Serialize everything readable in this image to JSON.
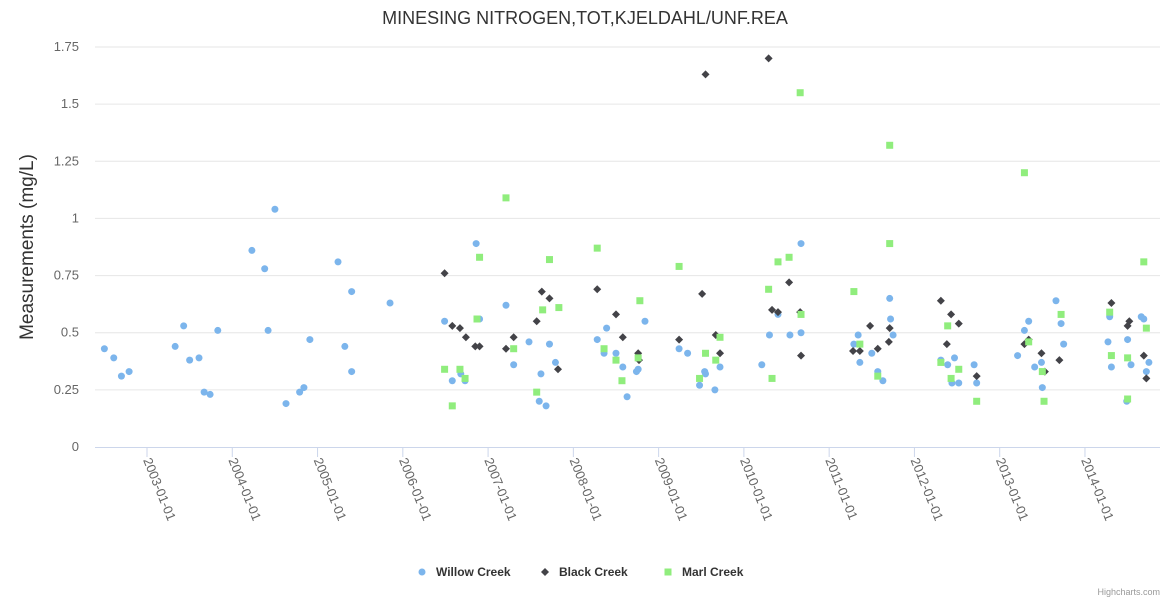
{
  "chart_data": {
    "type": "scatter",
    "title": "MINESING NITROGEN,TOT,KJELDAHL/UNF.REA",
    "xlabel": "",
    "ylabel": "Measurements (mg/L)",
    "x_units": "decimal year",
    "xlim": [
      2002.39,
      2014.88
    ],
    "ylim": [
      0,
      1.75
    ],
    "grid": true,
    "legend_position": "bottom-center",
    "y_ticks": [
      0,
      0.25,
      0.5,
      0.75,
      1,
      1.25,
      1.5,
      1.75
    ],
    "y_tick_labels": [
      "0",
      "0.25",
      "0.5",
      "0.75",
      "1",
      "1.25",
      "1.5",
      "1.75"
    ],
    "x_ticks": [
      2003,
      2004,
      2005,
      2006,
      2007,
      2008,
      2009,
      2010,
      2011,
      2012,
      2013,
      2014
    ],
    "x_tick_labels": [
      "2003-01-01",
      "2004-01-01",
      "2005-01-01",
      "2006-01-01",
      "2007-01-01",
      "2008-01-01",
      "2009-01-01",
      "2010-01-01",
      "2011-01-01",
      "2012-01-01",
      "2013-01-01",
      "2014-01-01"
    ],
    "credits": "Highcharts.com",
    "series": [
      {
        "name": "Willow Creek",
        "color": "#7cb5ec",
        "marker": "circle",
        "points": [
          [
            2002.5,
            0.43
          ],
          [
            2002.61,
            0.39
          ],
          [
            2002.7,
            0.31
          ],
          [
            2002.79,
            0.33
          ],
          [
            2003.33,
            0.44
          ],
          [
            2003.43,
            0.53
          ],
          [
            2003.5,
            0.38
          ],
          [
            2003.61,
            0.39
          ],
          [
            2003.67,
            0.24
          ],
          [
            2003.74,
            0.23
          ],
          [
            2003.83,
            0.51
          ],
          [
            2004.23,
            0.86
          ],
          [
            2004.38,
            0.78
          ],
          [
            2004.42,
            0.51
          ],
          [
            2004.5,
            1.04
          ],
          [
            2004.63,
            0.19
          ],
          [
            2004.79,
            0.24
          ],
          [
            2004.84,
            0.26
          ],
          [
            2004.91,
            0.47
          ],
          [
            2005.24,
            0.81
          ],
          [
            2005.32,
            0.44
          ],
          [
            2005.4,
            0.33
          ],
          [
            2005.4,
            0.68
          ],
          [
            2005.85,
            0.63
          ],
          [
            2006.49,
            0.55
          ],
          [
            2006.58,
            0.29
          ],
          [
            2006.68,
            0.32
          ],
          [
            2006.73,
            0.29
          ],
          [
            2006.86,
            0.89
          ],
          [
            2006.9,
            0.56
          ],
          [
            2007.21,
            0.62
          ],
          [
            2007.3,
            0.36
          ],
          [
            2007.48,
            0.46
          ],
          [
            2007.6,
            0.2
          ],
          [
            2007.62,
            0.32
          ],
          [
            2007.68,
            0.18
          ],
          [
            2007.72,
            0.45
          ],
          [
            2007.79,
            0.37
          ],
          [
            2008.28,
            0.47
          ],
          [
            2008.36,
            0.41
          ],
          [
            2008.39,
            0.52
          ],
          [
            2008.5,
            0.41
          ],
          [
            2008.58,
            0.35
          ],
          [
            2008.63,
            0.22
          ],
          [
            2008.74,
            0.33
          ],
          [
            2008.76,
            0.34
          ],
          [
            2008.84,
            0.55
          ],
          [
            2009.24,
            0.43
          ],
          [
            2009.34,
            0.41
          ],
          [
            2009.48,
            0.27
          ],
          [
            2009.54,
            0.33
          ],
          [
            2009.55,
            0.32
          ],
          [
            2009.66,
            0.25
          ],
          [
            2009.72,
            0.35
          ],
          [
            2010.21,
            0.36
          ],
          [
            2010.3,
            0.49
          ],
          [
            2010.4,
            0.58
          ],
          [
            2010.54,
            0.49
          ],
          [
            2010.67,
            0.5
          ],
          [
            2010.67,
            0.89
          ],
          [
            2011.29,
            0.45
          ],
          [
            2011.34,
            0.49
          ],
          [
            2011.36,
            0.37
          ],
          [
            2011.5,
            0.41
          ],
          [
            2011.57,
            0.33
          ],
          [
            2011.63,
            0.29
          ],
          [
            2011.71,
            0.65
          ],
          [
            2011.72,
            0.56
          ],
          [
            2011.75,
            0.49
          ],
          [
            2012.31,
            0.38
          ],
          [
            2012.39,
            0.36
          ],
          [
            2012.44,
            0.28
          ],
          [
            2012.47,
            0.39
          ],
          [
            2012.52,
            0.28
          ],
          [
            2012.7,
            0.36
          ],
          [
            2012.73,
            0.28
          ],
          [
            2013.21,
            0.4
          ],
          [
            2013.29,
            0.51
          ],
          [
            2013.34,
            0.55
          ],
          [
            2013.41,
            0.35
          ],
          [
            2013.49,
            0.37
          ],
          [
            2013.5,
            0.26
          ],
          [
            2013.66,
            0.64
          ],
          [
            2013.72,
            0.54
          ],
          [
            2013.75,
            0.45
          ],
          [
            2014.27,
            0.46
          ],
          [
            2014.29,
            0.57
          ],
          [
            2014.31,
            0.35
          ],
          [
            2014.49,
            0.2
          ],
          [
            2014.5,
            0.47
          ],
          [
            2014.54,
            0.36
          ],
          [
            2014.66,
            0.57
          ],
          [
            2014.69,
            0.56
          ],
          [
            2014.72,
            0.33
          ],
          [
            2014.75,
            0.37
          ]
        ]
      },
      {
        "name": "Black Creek",
        "color": "#434348",
        "marker": "diamond",
        "points": [
          [
            2006.49,
            0.76
          ],
          [
            2006.58,
            0.53
          ],
          [
            2006.67,
            0.52
          ],
          [
            2006.74,
            0.48
          ],
          [
            2006.85,
            0.44
          ],
          [
            2006.9,
            0.44
          ],
          [
            2007.21,
            0.43
          ],
          [
            2007.3,
            0.48
          ],
          [
            2007.57,
            0.55
          ],
          [
            2007.63,
            0.68
          ],
          [
            2007.72,
            0.65
          ],
          [
            2007.82,
            0.34
          ],
          [
            2008.28,
            0.69
          ],
          [
            2008.5,
            0.58
          ],
          [
            2008.58,
            0.48
          ],
          [
            2008.76,
            0.41
          ],
          [
            2008.77,
            0.38
          ],
          [
            2009.24,
            0.47
          ],
          [
            2009.51,
            0.67
          ],
          [
            2009.55,
            1.63
          ],
          [
            2009.67,
            0.49
          ],
          [
            2009.72,
            0.41
          ],
          [
            2010.29,
            1.7
          ],
          [
            2010.33,
            0.6
          ],
          [
            2010.4,
            0.59
          ],
          [
            2010.53,
            0.72
          ],
          [
            2010.66,
            0.59
          ],
          [
            2010.67,
            0.4
          ],
          [
            2011.28,
            0.42
          ],
          [
            2011.36,
            0.42
          ],
          [
            2011.48,
            0.53
          ],
          [
            2011.57,
            0.43
          ],
          [
            2011.7,
            0.46
          ],
          [
            2011.71,
            0.52
          ],
          [
            2012.31,
            0.64
          ],
          [
            2012.38,
            0.45
          ],
          [
            2012.43,
            0.58
          ],
          [
            2012.52,
            0.54
          ],
          [
            2012.73,
            0.31
          ],
          [
            2013.29,
            0.45
          ],
          [
            2013.34,
            0.47
          ],
          [
            2013.49,
            0.41
          ],
          [
            2013.53,
            0.33
          ],
          [
            2013.7,
            0.38
          ],
          [
            2014.31,
            0.63
          ],
          [
            2014.5,
            0.53
          ],
          [
            2014.52,
            0.55
          ],
          [
            2014.69,
            0.4
          ],
          [
            2014.72,
            0.3
          ]
        ]
      },
      {
        "name": "Marl Creek",
        "color": "#90ed7d",
        "marker": "square",
        "points": [
          [
            2006.49,
            0.34
          ],
          [
            2006.58,
            0.18
          ],
          [
            2006.67,
            0.34
          ],
          [
            2006.73,
            0.3
          ],
          [
            2006.87,
            0.56
          ],
          [
            2006.9,
            0.83
          ],
          [
            2007.21,
            1.09
          ],
          [
            2007.3,
            0.43
          ],
          [
            2007.57,
            0.24
          ],
          [
            2007.64,
            0.6
          ],
          [
            2007.72,
            0.82
          ],
          [
            2007.83,
            0.61
          ],
          [
            2008.28,
            0.87
          ],
          [
            2008.36,
            0.43
          ],
          [
            2008.5,
            0.38
          ],
          [
            2008.57,
            0.29
          ],
          [
            2008.76,
            0.39
          ],
          [
            2008.78,
            0.64
          ],
          [
            2009.24,
            0.79
          ],
          [
            2009.48,
            0.3
          ],
          [
            2009.55,
            0.41
          ],
          [
            2009.67,
            0.38
          ],
          [
            2009.72,
            0.48
          ],
          [
            2010.29,
            0.69
          ],
          [
            2010.33,
            0.3
          ],
          [
            2010.4,
            0.81
          ],
          [
            2010.53,
            0.83
          ],
          [
            2010.66,
            1.55
          ],
          [
            2010.67,
            0.58
          ],
          [
            2011.29,
            0.68
          ],
          [
            2011.36,
            0.45
          ],
          [
            2011.57,
            0.31
          ],
          [
            2011.71,
            1.32
          ],
          [
            2011.71,
            0.89
          ],
          [
            2012.31,
            0.37
          ],
          [
            2012.39,
            0.53
          ],
          [
            2012.43,
            0.3
          ],
          [
            2012.52,
            0.34
          ],
          [
            2012.73,
            0.2
          ],
          [
            2013.29,
            1.2
          ],
          [
            2013.34,
            0.46
          ],
          [
            2013.5,
            0.33
          ],
          [
            2013.52,
            0.2
          ],
          [
            2013.72,
            0.58
          ],
          [
            2014.29,
            0.59
          ],
          [
            2014.31,
            0.4
          ],
          [
            2014.5,
            0.39
          ],
          [
            2014.5,
            0.21
          ],
          [
            2014.69,
            0.81
          ],
          [
            2014.72,
            0.52
          ]
        ]
      }
    ]
  }
}
